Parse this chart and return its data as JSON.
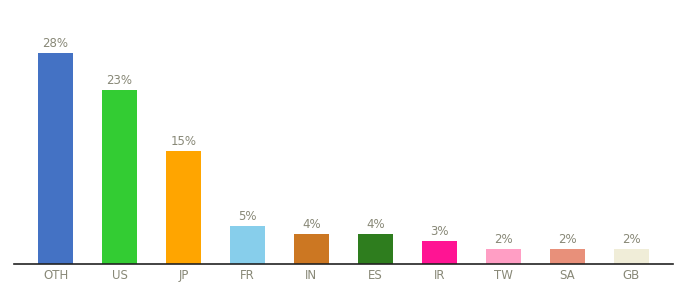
{
  "categories": [
    "OTH",
    "US",
    "JP",
    "FR",
    "IN",
    "ES",
    "IR",
    "TW",
    "SA",
    "GB"
  ],
  "values": [
    28,
    23,
    15,
    5,
    4,
    4,
    3,
    2,
    2,
    2
  ],
  "bar_colors": [
    "#4472C4",
    "#33CC33",
    "#FFA500",
    "#87CEEB",
    "#CC7722",
    "#2E7D1E",
    "#FF1493",
    "#FF9EC4",
    "#E8907A",
    "#F0EDD8"
  ],
  "labels": [
    "28%",
    "23%",
    "15%",
    "5%",
    "4%",
    "4%",
    "3%",
    "2%",
    "2%",
    "2%"
  ],
  "ylim": [
    0,
    33
  ],
  "background_color": "#ffffff",
  "label_fontsize": 8.5,
  "tick_fontsize": 8.5,
  "label_color": "#888877",
  "tick_color": "#888877",
  "bar_width": 0.55
}
